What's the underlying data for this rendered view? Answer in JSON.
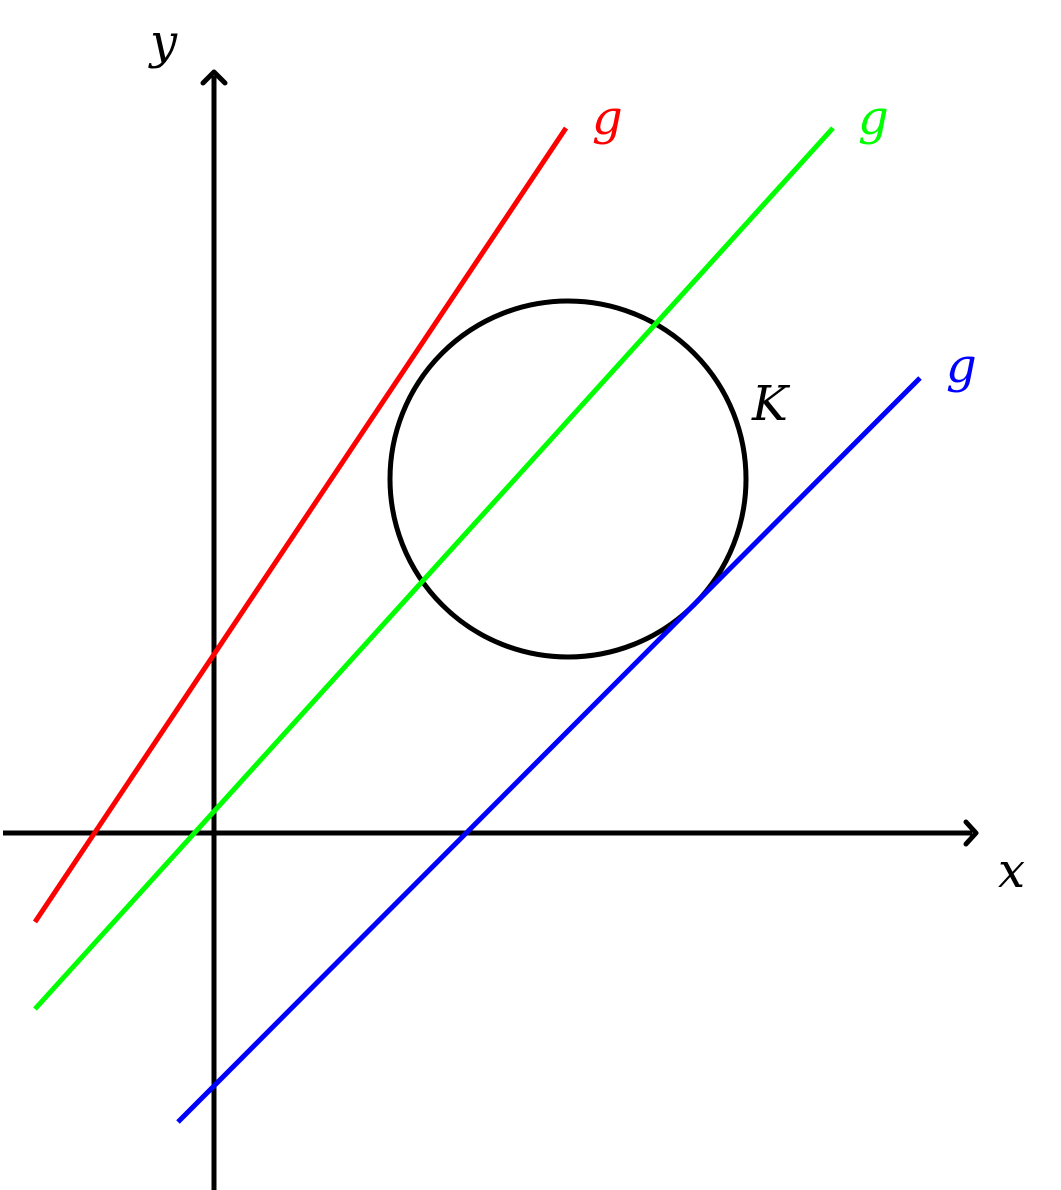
{
  "axes": {
    "x_label": "x",
    "y_label": "y",
    "color": "#000000"
  },
  "circle": {
    "label": "K",
    "color": "#000000"
  },
  "lines": [
    {
      "id": "red",
      "label": "g",
      "color": "#ff0000"
    },
    {
      "id": "green",
      "label": "g",
      "color": "#00ff00"
    },
    {
      "id": "blue",
      "label": "g",
      "color": "#0000ff"
    }
  ]
}
